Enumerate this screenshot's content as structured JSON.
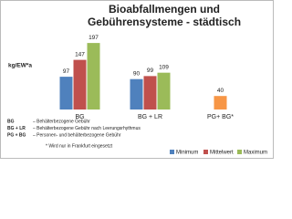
{
  "chart_data": {
    "type": "bar",
    "title_lines": [
      "Bioabfallmengen und",
      "Gebührensysteme - städtisch"
    ],
    "y_label": "kg/EW*a",
    "categories": [
      "BG",
      "BG + LR",
      "PG+ BG*"
    ],
    "series": [
      {
        "name": "Minimum",
        "color": "#4f81bd",
        "values": [
          97,
          90,
          null
        ]
      },
      {
        "name": "Mittelwert",
        "color": "#c0504d",
        "values": [
          147,
          99,
          40
        ],
        "point_colors": [
          "#c0504d",
          "#c0504d",
          "#f79646"
        ]
      },
      {
        "name": "Maximum",
        "color": "#9bbb59",
        "values": [
          197,
          109,
          null
        ]
      }
    ],
    "ylim": [
      0,
      200
    ],
    "notes": [
      [
        "BG",
        "– Behälterbezogene Gebühr"
      ],
      [
        "BG + LR",
        "– Behälterbezogene Gebühr nach Leerungsrhythmus"
      ],
      [
        "PG + BG",
        "– Personen- und behälterbezogene Gebühr"
      ]
    ],
    "footnote": "* Wird nur in Frankfurt eingesetzt"
  }
}
